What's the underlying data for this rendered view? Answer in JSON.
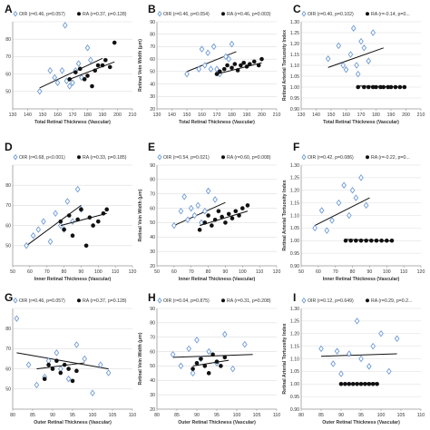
{
  "colors": {
    "oir": "#6f9bd4",
    "ra": "#111111",
    "grid": "#dddddd",
    "axis": "#9a9a9a"
  },
  "chart_data": [
    {
      "panel": "A",
      "type": "scatter",
      "xlabel": "Total  Retinal Thickness (Vascular)",
      "ylabel": "",
      "xlim": [
        130,
        210
      ],
      "ylim": [
        40,
        90
      ],
      "xticks": [
        130,
        140,
        150,
        160,
        170,
        180,
        190,
        200,
        210
      ],
      "yticks": [
        40,
        50,
        60,
        70,
        80,
        90
      ],
      "yticklabels": [
        "",
        "50",
        "60",
        "70",
        "80",
        ""
      ],
      "legend": [
        {
          "name": "OIR (r=0.46, p=0.057)"
        },
        {
          "name": "RA (r=0.37, p=0.128)"
        }
      ],
      "series": [
        {
          "name": "OIR",
          "marker": "diamond",
          "x": [
            148,
            155,
            158,
            160,
            163,
            165,
            166,
            168,
            170,
            172,
            174,
            176,
            180,
            182
          ],
          "y": [
            50,
            62,
            58,
            55,
            62,
            88,
            56,
            53,
            55,
            62,
            66,
            58,
            75,
            68
          ],
          "trend": [
            [
              148,
              52
            ],
            [
              190,
              69
            ]
          ]
        },
        {
          "name": "RA",
          "marker": "circle",
          "x": [
            168,
            172,
            175,
            178,
            180,
            183,
            185,
            187,
            190,
            192,
            195,
            198
          ],
          "y": [
            57,
            61,
            63,
            57,
            59,
            53,
            62,
            65,
            65,
            68,
            64,
            78
          ],
          "trend": [
            [
              168,
              57
            ],
            [
              198,
              67
            ]
          ]
        }
      ]
    },
    {
      "panel": "B",
      "type": "scatter",
      "xlabel": "Total  Retinal Thickness (Vascular)",
      "ylabel": "Retinal Vein Width (μm)",
      "xlim": [
        130,
        210
      ],
      "ylim": [
        20,
        90
      ],
      "xticks": [
        130,
        140,
        150,
        160,
        170,
        180,
        190,
        200,
        210
      ],
      "yticks": [
        20,
        30,
        40,
        50,
        60,
        70,
        80,
        90
      ],
      "yticklabels": [
        "20",
        "30",
        "40",
        "50",
        "60",
        "70",
        "80",
        "90"
      ],
      "legend": [
        {
          "name": "OIR (r=0.46, p=0.054)"
        },
        {
          "name": "RA (r=0.46, p=0.003)"
        }
      ],
      "series": [
        {
          "name": "OIR",
          "marker": "diamond",
          "x": [
            150,
            158,
            160,
            162,
            164,
            166,
            168,
            170,
            172,
            176,
            178,
            180
          ],
          "y": [
            48,
            52,
            68,
            55,
            65,
            52,
            70,
            52,
            48,
            62,
            60,
            72
          ],
          "trend": [
            [
              150,
              50
            ],
            [
              183,
              66
            ]
          ]
        },
        {
          "name": "RA",
          "marker": "circle",
          "x": [
            170,
            172,
            175,
            177,
            180,
            182,
            184,
            186,
            188,
            190,
            192,
            195,
            198,
            200
          ],
          "y": [
            48,
            50,
            52,
            55,
            53,
            56,
            51,
            55,
            57,
            54,
            56,
            58,
            55,
            60
          ],
          "trend": [
            [
              170,
              48
            ],
            [
              200,
              57
            ]
          ]
        }
      ]
    },
    {
      "panel": "C",
      "type": "scatter",
      "xlabel": "Total  Retinal Thickness (Vascular)",
      "ylabel": "Retinal Arterial Tortuosity Index",
      "xlim": [
        130,
        210
      ],
      "ylim": [
        0.9,
        1.3
      ],
      "xticks": [
        130,
        140,
        150,
        160,
        170,
        180,
        190,
        200,
        210
      ],
      "yticks": [
        0.9,
        0.95,
        1.0,
        1.05,
        1.1,
        1.15,
        1.2,
        1.25,
        1.3
      ],
      "yticklabels": [
        "0.90",
        "0.95",
        "1.00",
        "1.05",
        "1.10",
        "1.15",
        "1.20",
        "1.25",
        "1.30"
      ],
      "legend": [
        {
          "name": "OIR (r=0.40, p=0.102)"
        },
        {
          "name": "RA (r=-0.14, p=0..."
        }
      ],
      "series": [
        {
          "name": "OIR",
          "marker": "diamond",
          "x": [
            148,
            155,
            158,
            160,
            163,
            165,
            167,
            168,
            170,
            172,
            175,
            178
          ],
          "y": [
            1.13,
            1.19,
            1.1,
            1.08,
            1.15,
            1.27,
            1.1,
            1.06,
            1.21,
            1.18,
            1.12,
            1.25
          ],
          "trend": [
            [
              148,
              1.09
            ],
            [
              185,
              1.18
            ]
          ]
        },
        {
          "name": "RA",
          "marker": "circle",
          "x": [
            168,
            172,
            175,
            178,
            180,
            183,
            185,
            188,
            190,
            193,
            196,
            199
          ],
          "y": [
            1.0,
            1.0,
            1.0,
            1.0,
            1.0,
            1.0,
            1.0,
            1.0,
            1.0,
            1.0,
            1.0,
            1.0
          ],
          "trend": [
            [
              168,
              1.005
            ],
            [
              200,
              1.0
            ]
          ]
        }
      ]
    },
    {
      "panel": "D",
      "type": "scatter",
      "xlabel": "Inner Retinal Thickness (Vascular)",
      "ylabel": "",
      "xlim": [
        50,
        120
      ],
      "ylim": [
        40,
        90
      ],
      "xticks": [
        50,
        60,
        70,
        80,
        90,
        100,
        110,
        120
      ],
      "yticks": [
        40,
        50,
        60,
        70,
        80,
        90
      ],
      "yticklabels": [
        "",
        "50",
        "60",
        "70",
        "80",
        ""
      ],
      "legend": [
        {
          "name": "OIR (r=0.68, p<0.001)"
        },
        {
          "name": "RA (r=0.33, p=0.185)"
        }
      ],
      "series": [
        {
          "name": "OIR",
          "marker": "diamond",
          "x": [
            58,
            62,
            65,
            68,
            72,
            75,
            78,
            80,
            82,
            85,
            88,
            90
          ],
          "y": [
            50,
            55,
            58,
            62,
            52,
            66,
            60,
            58,
            72,
            62,
            78,
            68
          ],
          "trend": [
            [
              58,
              50
            ],
            [
              90,
              70
            ]
          ]
        },
        {
          "name": "RA",
          "marker": "circle",
          "x": [
            78,
            80,
            83,
            85,
            88,
            90,
            93,
            95,
            97,
            100,
            103,
            105
          ],
          "y": [
            62,
            58,
            65,
            55,
            63,
            68,
            50,
            64,
            60,
            62,
            66,
            68
          ],
          "trend": [
            [
              78,
              60
            ],
            [
              105,
              66
            ]
          ]
        }
      ]
    },
    {
      "panel": "E",
      "type": "scatter",
      "xlabel": "Inner Retinal Thickness (Vascular)",
      "ylabel": "Retinal Vein Width (μm)",
      "xlim": [
        50,
        120
      ],
      "ylim": [
        20,
        90
      ],
      "xticks": [
        50,
        60,
        70,
        80,
        90,
        100,
        110,
        120
      ],
      "yticks": [
        20,
        30,
        40,
        50,
        60,
        70,
        80,
        90
      ],
      "yticklabels": [
        "20",
        "30",
        "40",
        "50",
        "60",
        "70",
        "80",
        "90"
      ],
      "legend": [
        {
          "name": "OIR (r=0.54, p=0.021)"
        },
        {
          "name": "RA (r=0.60, p=0.008)"
        }
      ],
      "series": [
        {
          "name": "OIR",
          "marker": "diamond",
          "x": [
            60,
            64,
            66,
            68,
            70,
            72,
            74,
            76,
            78,
            80,
            84
          ],
          "y": [
            48,
            58,
            68,
            52,
            60,
            55,
            62,
            50,
            58,
            72,
            66
          ],
          "trend": [
            [
              60,
              48
            ],
            [
              90,
              64
            ]
          ]
        },
        {
          "name": "RA",
          "marker": "circle",
          "x": [
            75,
            78,
            80,
            82,
            84,
            86,
            88,
            90,
            92,
            94,
            96,
            98,
            100,
            103
          ],
          "y": [
            45,
            50,
            55,
            48,
            52,
            58,
            54,
            50,
            56,
            53,
            58,
            55,
            60,
            62
          ],
          "trend": [
            [
              75,
              48
            ],
            [
              103,
              58
            ]
          ]
        }
      ]
    },
    {
      "panel": "F",
      "type": "scatter",
      "xlabel": "Inner Retinal Thickness (Vascular)",
      "ylabel": "Retinal Arterial Tortuosity Index",
      "xlim": [
        50,
        120
      ],
      "ylim": [
        0.9,
        1.3
      ],
      "xticks": [
        50,
        60,
        70,
        80,
        90,
        100,
        110,
        120
      ],
      "yticks": [
        0.9,
        0.95,
        1.0,
        1.05,
        1.1,
        1.15,
        1.2,
        1.25,
        1.3
      ],
      "yticklabels": [
        "0.90",
        "0.95",
        "1.00",
        "1.05",
        "1.10",
        "1.15",
        "1.20",
        "1.25",
        "1.30"
      ],
      "legend": [
        {
          "name": "OIR (r=0.42, p=0.086)"
        },
        {
          "name": "RA (r=-0.22, p=0..."
        }
      ],
      "series": [
        {
          "name": "OIR",
          "marker": "diamond",
          "x": [
            58,
            62,
            65,
            68,
            72,
            75,
            78,
            80,
            82,
            85,
            88
          ],
          "y": [
            1.05,
            1.12,
            1.04,
            1.08,
            1.15,
            1.22,
            1.1,
            1.2,
            1.17,
            1.25,
            1.14
          ],
          "trend": [
            [
              58,
              1.06
            ],
            [
              90,
              1.17
            ]
          ]
        },
        {
          "name": "RA",
          "marker": "circle",
          "x": [
            76,
            79,
            82,
            85,
            88,
            91,
            94,
            97,
            100,
            103
          ],
          "y": [
            1.0,
            1.0,
            1.0,
            1.0,
            1.0,
            1.0,
            1.0,
            1.0,
            1.0,
            1.0
          ],
          "trend": [
            [
              76,
              1.005
            ],
            [
              104,
              0.998
            ]
          ]
        }
      ]
    },
    {
      "panel": "G",
      "type": "scatter",
      "xlabel": "Outer Retinal Thickness (Vascular)",
      "ylabel": "",
      "xlim": [
        80,
        110
      ],
      "ylim": [
        40,
        90
      ],
      "xticks": [
        80,
        85,
        90,
        95,
        100,
        105,
        110
      ],
      "yticks": [
        40,
        50,
        60,
        70,
        80,
        90
      ],
      "yticklabels": [
        "",
        "50",
        "60",
        "70",
        "80",
        ""
      ],
      "legend": [
        {
          "name": "OIR (r=0.46, p=0.057)"
        },
        {
          "name": "RA (r=0.37, p=0.128)"
        }
      ],
      "series": [
        {
          "name": "OIR",
          "marker": "diamond",
          "x": [
            81,
            84,
            86,
            88,
            89,
            91,
            92,
            94,
            96,
            98,
            100,
            102,
            104
          ],
          "y": [
            85,
            62,
            52,
            56,
            64,
            68,
            60,
            55,
            72,
            65,
            48,
            62,
            58
          ],
          "trend": [
            [
              81,
              68
            ],
            [
              104,
              60
            ]
          ]
        },
        {
          "name": "RA",
          "marker": "circle",
          "x": [
            88,
            89,
            90,
            91,
            92,
            93,
            94,
            95,
            96
          ],
          "y": [
            55,
            62,
            60,
            64,
            58,
            62,
            60,
            54,
            59
          ],
          "trend": [
            [
              86,
              60
            ],
            [
              98,
              63
            ]
          ]
        }
      ]
    },
    {
      "panel": "H",
      "type": "scatter",
      "xlabel": "Outer Retinal Thickness (Vascular)",
      "ylabel": "Retinal Vein Width (μm)",
      "xlim": [
        80,
        110
      ],
      "ylim": [
        20,
        90
      ],
      "xticks": [
        80,
        85,
        90,
        95,
        100,
        105,
        110
      ],
      "yticks": [
        20,
        30,
        40,
        50,
        60,
        70,
        80,
        90
      ],
      "yticklabels": [
        "20",
        "30",
        "40",
        "50",
        "60",
        "70",
        "80",
        "90"
      ],
      "legend": [
        {
          "name": "OIR (r=0.04, p=0.875)"
        },
        {
          "name": "RA (r=0.31, p=0.208)"
        }
      ],
      "series": [
        {
          "name": "OIR",
          "marker": "diamond",
          "x": [
            84,
            86,
            88,
            89,
            90,
            91,
            93,
            95,
            97,
            99,
            102
          ],
          "y": [
            58,
            50,
            62,
            45,
            68,
            55,
            60,
            52,
            72,
            48,
            65
          ],
          "trend": [
            [
              84,
              56
            ],
            [
              104,
              58
            ]
          ]
        },
        {
          "name": "RA",
          "marker": "circle",
          "x": [
            89,
            90,
            91,
            92,
            93,
            94,
            95,
            96,
            97
          ],
          "y": [
            48,
            52,
            55,
            50,
            45,
            58,
            53,
            50,
            56
          ],
          "trend": [
            [
              89,
              50
            ],
            [
              98,
              54
            ]
          ]
        }
      ]
    },
    {
      "panel": "I",
      "type": "scatter",
      "xlabel": "Outer Retinal Thickness (Vascular)",
      "ylabel": "Retinal Arterial Tortuosity Index",
      "xlim": [
        80,
        110
      ],
      "ylim": [
        0.9,
        1.3
      ],
      "xticks": [
        80,
        85,
        90,
        95,
        100,
        105,
        110
      ],
      "yticks": [
        0.9,
        0.95,
        1.0,
        1.05,
        1.1,
        1.15,
        1.2,
        1.25,
        1.3
      ],
      "yticklabels": [
        "0.90",
        "0.95",
        "1.00",
        "1.05",
        "1.10",
        "1.15",
        "1.20",
        "1.25",
        "1.30"
      ],
      "legend": [
        {
          "name": "OIR (r=0.12, p=0.649)"
        },
        {
          "name": "RA (r=0.29, p=0.2..."
        }
      ],
      "series": [
        {
          "name": "OIR",
          "marker": "diamond",
          "x": [
            85,
            88,
            89,
            90,
            92,
            94,
            95,
            97,
            98,
            100,
            102,
            104
          ],
          "y": [
            1.14,
            1.08,
            1.13,
            1.04,
            1.12,
            1.25,
            1.1,
            1.07,
            1.15,
            1.2,
            1.05,
            1.18
          ],
          "trend": [
            [
              85,
              1.11
            ],
            [
              104,
              1.12
            ]
          ]
        },
        {
          "name": "RA",
          "marker": "circle",
          "x": [
            90,
            91,
            92,
            93,
            94,
            95,
            96,
            97,
            98,
            99
          ],
          "y": [
            1.0,
            1.0,
            1.0,
            1.0,
            1.0,
            1.0,
            1.0,
            1.0,
            1.0,
            1.0
          ],
          "trend": [
            [
              90,
              1.0
            ],
            [
              99,
              1.004
            ]
          ]
        }
      ]
    }
  ]
}
